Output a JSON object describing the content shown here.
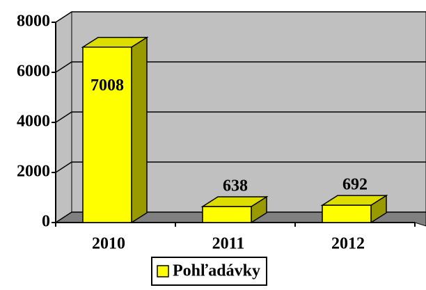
{
  "chart_data": {
    "type": "bar3d",
    "categories": [
      "2010",
      "2011",
      "2012"
    ],
    "series": [
      {
        "name": "Pohľadávky",
        "color": "#ffff00",
        "values": [
          7008,
          638,
          692
        ]
      }
    ],
    "ylim": [
      0,
      8000
    ],
    "yticks": [
      0,
      2000,
      4000,
      6000,
      8000
    ],
    "grid": true,
    "legend": "bottom"
  }
}
